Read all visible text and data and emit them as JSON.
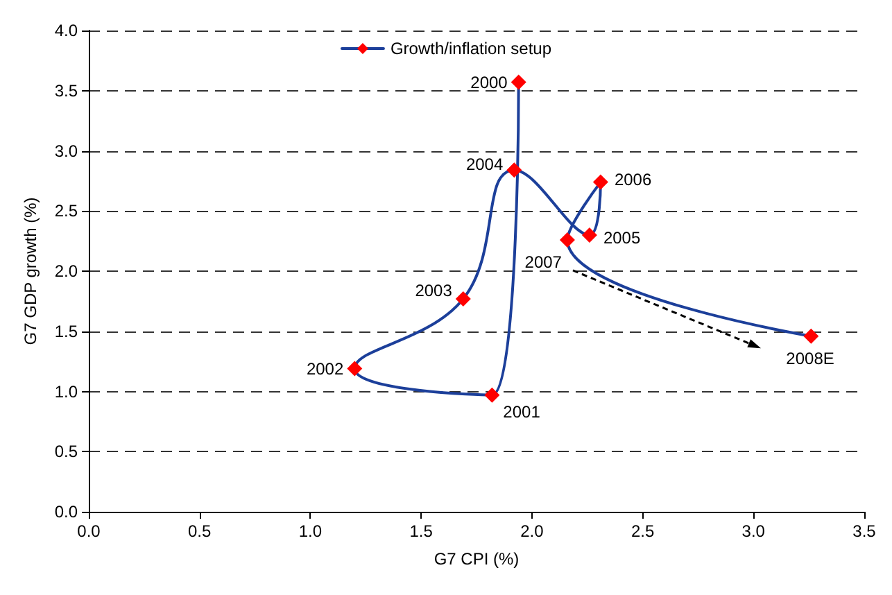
{
  "chart_data": {
    "type": "line",
    "xlabel": "G7 CPI (%)",
    "ylabel": "G7 GDP growth (%)",
    "xlim": [
      0,
      3.5
    ],
    "xticks": [
      {
        "value": 0,
        "label": "0.0"
      },
      {
        "value": 0.5,
        "label": "0.5"
      },
      {
        "value": 1,
        "label": "1.0"
      },
      {
        "value": 1.5,
        "label": "1.5"
      },
      {
        "value": 2,
        "label": "2.0"
      },
      {
        "value": 2.5,
        "label": "2.5"
      },
      {
        "value": 3,
        "label": "3.0"
      },
      {
        "value": 3.5,
        "label": "3.5"
      }
    ],
    "ylim": [
      0,
      4
    ],
    "yticks": [
      {
        "value": 0,
        "label": "0.0"
      },
      {
        "value": 0.5,
        "label": "0.5"
      },
      {
        "value": 1,
        "label": "1.0"
      },
      {
        "value": 1.5,
        "label": "1.5"
      },
      {
        "value": 2,
        "label": "2.0"
      },
      {
        "value": 2.5,
        "label": "2.5"
      },
      {
        "value": 3,
        "label": "3.0"
      },
      {
        "value": 3.5,
        "label": "3.5"
      },
      {
        "value": 4,
        "label": "4.0"
      }
    ],
    "grid": "y",
    "legend": "top",
    "marker": "diamond",
    "line_style": "solid",
    "series": [
      {
        "name": "Growth/inflation setup",
        "color": "#1c3f9a",
        "colors": [
          "#ff0000",
          "#ff0000",
          "#ff0000",
          "#ff0000",
          "#ff0000",
          "#ff0000",
          "#ff0000",
          "#ff0000",
          "#ff0000"
        ],
        "x": [
          1.94,
          1.82,
          1.2,
          1.69,
          1.92,
          2.26,
          2.31,
          2.16,
          3.26
        ],
        "values": [
          3.57,
          0.97,
          1.19,
          1.77,
          2.84,
          2.3,
          2.74,
          2.26,
          1.46
        ]
      }
    ],
    "annotations": [
      {
        "text": "2000",
        "x": 1.94,
        "y": 3.57
      },
      {
        "text": "2001",
        "x": 1.82,
        "y": 0.97
      },
      {
        "text": "2002",
        "x": 1.2,
        "y": 1.19
      },
      {
        "text": "2003",
        "x": 1.69,
        "y": 1.77
      },
      {
        "text": "2004",
        "x": 1.92,
        "y": 2.84
      },
      {
        "text": "2005",
        "x": 2.26,
        "y": 2.3
      },
      {
        "text": "2006",
        "x": 2.31,
        "y": 2.74
      },
      {
        "text": "2007",
        "x": 2.16,
        "y": 2.26
      },
      {
        "text": "2008E",
        "x": 3.26,
        "y": 1.46
      }
    ]
  }
}
